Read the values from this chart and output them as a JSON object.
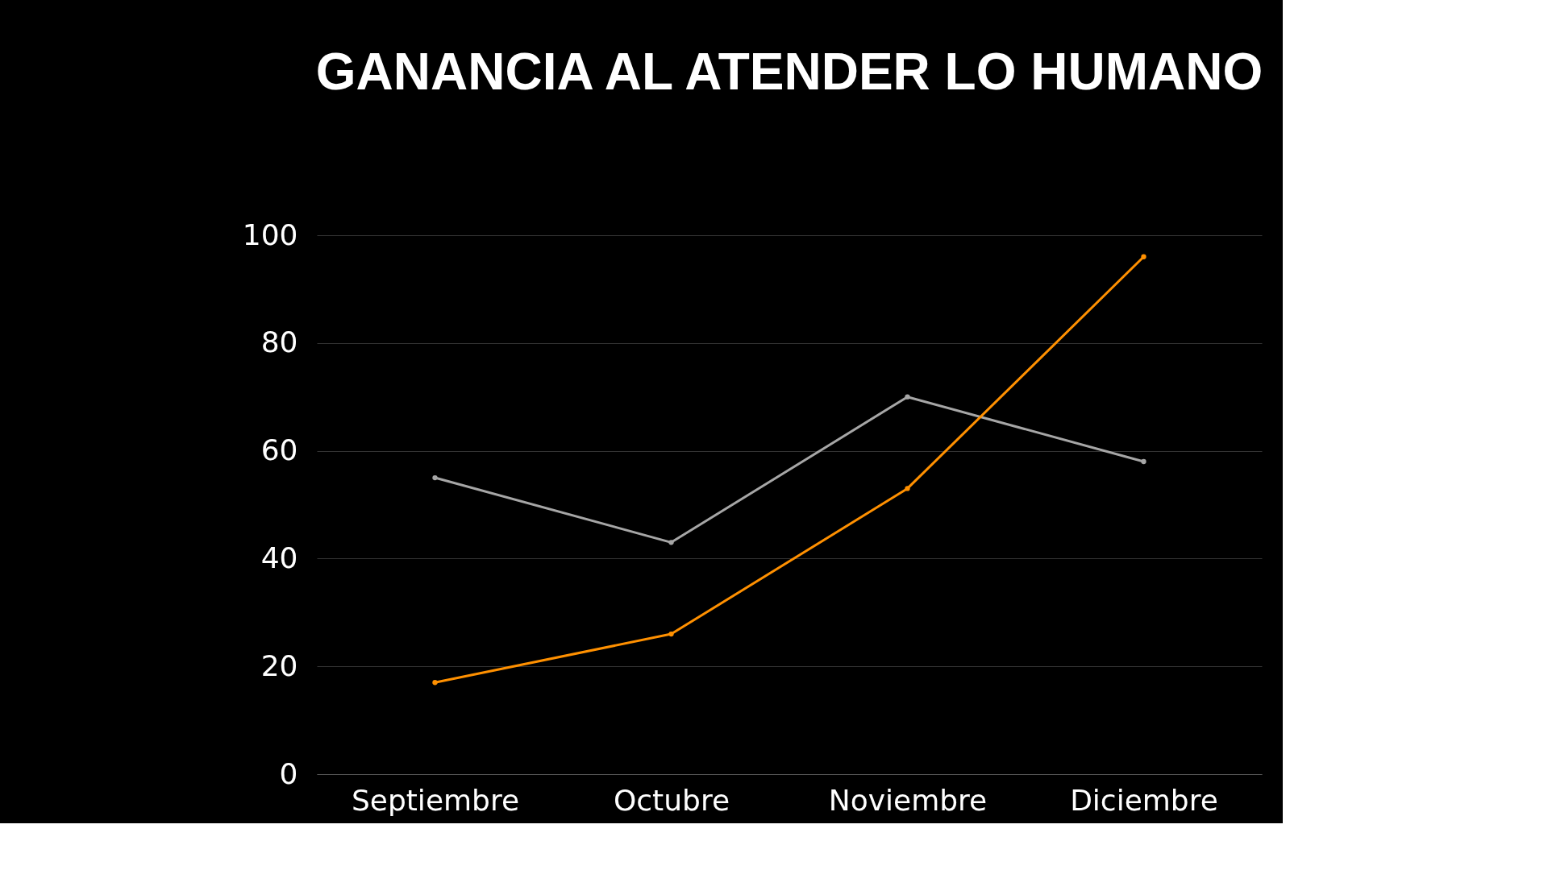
{
  "chart_data": {
    "type": "line",
    "title": "GANANCIA AL ATENDER LO HUMANO",
    "categories": [
      "Septiembre",
      "Octubre",
      "Noviembre",
      "Diciembre"
    ],
    "series": [
      {
        "color": "#a6a6a6",
        "values": [
          55,
          43,
          70,
          58
        ]
      },
      {
        "color": "#ff9000",
        "values": [
          17,
          26,
          53,
          96
        ]
      }
    ],
    "ylim": [
      0,
      100
    ],
    "yticks": [
      0,
      20,
      40,
      60,
      80,
      100
    ],
    "grid": "y",
    "marker": "circle",
    "line_style": "solid"
  }
}
